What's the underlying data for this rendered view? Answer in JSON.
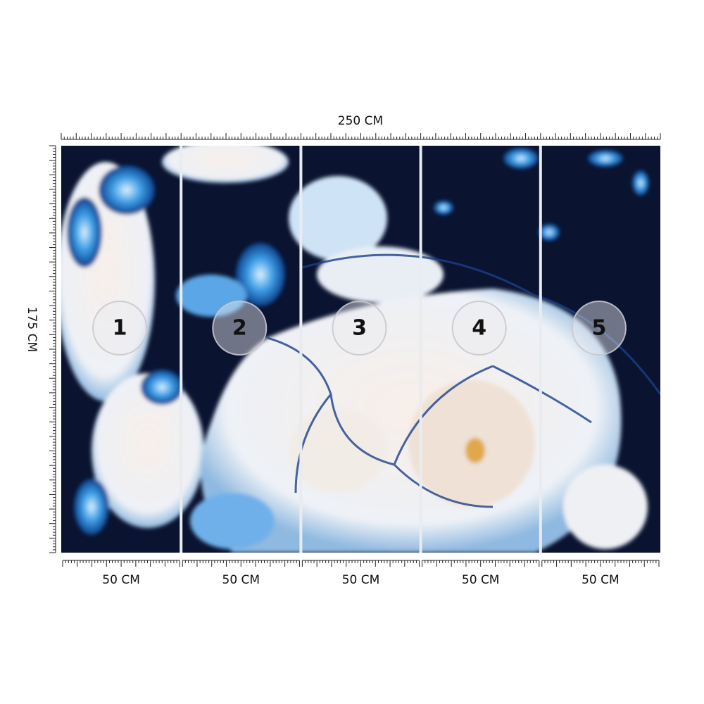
{
  "width_label": "250 CM",
  "height_label": "175 CM",
  "panels": [
    {
      "number": "1",
      "width": "50 CM"
    },
    {
      "number": "2",
      "width": "50 CM"
    },
    {
      "number": "3",
      "width": "50 CM"
    },
    {
      "number": "4",
      "width": "50 CM"
    },
    {
      "number": "5",
      "width": "50 CM"
    }
  ]
}
